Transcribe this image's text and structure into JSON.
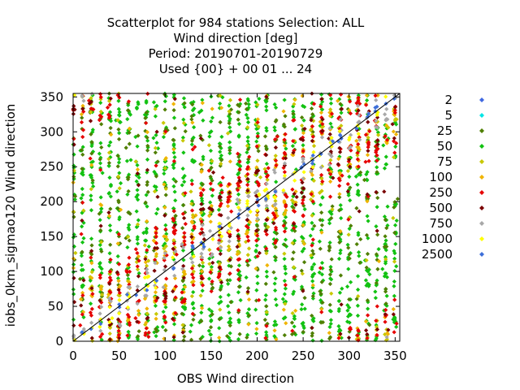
{
  "chart_data": {
    "type": "scatter",
    "title_lines": [
      "Scatterplot for  984 stations Selection: ALL",
      "Wind direction [deg]",
      "Period: 20190701-20190729",
      "Used {00} + 00 01 ... 24"
    ],
    "xlabel": "OBS Wind direction",
    "ylabel": "iobs_0km_sigmao120 Wind direction",
    "xlim": [
      0,
      355
    ],
    "ylim": [
      0,
      355
    ],
    "xticks": [
      0,
      50,
      100,
      150,
      200,
      250,
      300,
      350
    ],
    "yticks": [
      0,
      50,
      100,
      150,
      200,
      250,
      300,
      350
    ],
    "diagonal": true,
    "grid": false,
    "legend_position": "right",
    "series": [
      {
        "name": "2",
        "color": "#4169e1"
      },
      {
        "name": "5",
        "color": "#00e5e5"
      },
      {
        "name": "25",
        "color": "#4f7f00"
      },
      {
        "name": "50",
        "color": "#12c212"
      },
      {
        "name": "75",
        "color": "#c8c800"
      },
      {
        "name": "100",
        "color": "#f0b400"
      },
      {
        "name": "250",
        "color": "#e60000"
      },
      {
        "name": "500",
        "color": "#7a0000"
      },
      {
        "name": "750",
        "color": "#a8a8a8"
      },
      {
        "name": "1000",
        "color": "#ffff00"
      },
      {
        "name": "2500",
        "color": "#3d6fd9"
      }
    ]
  }
}
